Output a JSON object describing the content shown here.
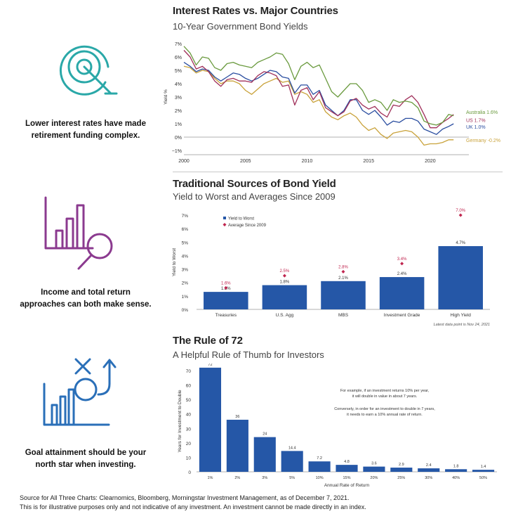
{
  "captions": [
    {
      "line1": "Lower interest rates have made",
      "line2": "retirement funding complex."
    },
    {
      "line1": "Income and total return",
      "line2": "approaches can both make sense."
    },
    {
      "line1": "Goal attainment should be your",
      "line2": "north star when investing."
    }
  ],
  "icon_color": "#2aa8a8",
  "icon_color_2": "#8b3a8f",
  "icon_color_3": "#2a6fb8",
  "icons": [
    "target-icon",
    "bar-chart-magnifier-icon",
    "strategy-chart-icon"
  ],
  "chart_data": [
    {
      "type": "line",
      "title": "Interest Rates vs. Major Countries",
      "subtitle": "10-Year Government Bond Yields",
      "ylabel": "Yield %",
      "xlim": [
        2000,
        2022
      ],
      "ylim": [
        -1,
        7
      ],
      "x_ticks": [
        "2000",
        "2005",
        "2010",
        "2015",
        "2020"
      ],
      "y_ticks": [
        "7%",
        "6%",
        "5%",
        "4%",
        "3%",
        "2%",
        "1%",
        "0%",
        "−1%"
      ],
      "series": [
        {
          "name": "Australia 1.6%",
          "color": "#6a9a3e",
          "x": [
            2000,
            2000.5,
            2001,
            2001.5,
            2002,
            2002.5,
            2003,
            2003.5,
            2004,
            2004.5,
            2005,
            2005.5,
            2006,
            2006.5,
            2007,
            2007.5,
            2008,
            2008.5,
            2009,
            2009.5,
            2010,
            2010.5,
            2011,
            2011.5,
            2012,
            2012.5,
            2013,
            2013.5,
            2014,
            2014.5,
            2015,
            2015.5,
            2016,
            2016.5,
            2017,
            2017.5,
            2018,
            2018.5,
            2019,
            2019.5,
            2020,
            2020.5,
            2021,
            2021.5,
            2021.9
          ],
          "values": [
            6.8,
            6.3,
            5.4,
            6.0,
            5.9,
            5.2,
            5.0,
            5.5,
            5.6,
            5.4,
            5.3,
            5.2,
            5.6,
            5.8,
            6.0,
            6.3,
            6.2,
            5.5,
            4.3,
            5.3,
            5.6,
            5.2,
            5.4,
            4.4,
            3.4,
            3.0,
            3.5,
            4.0,
            4.0,
            3.5,
            2.6,
            2.8,
            2.6,
            2.0,
            2.8,
            2.6,
            2.7,
            2.6,
            2.2,
            1.2,
            1.0,
            0.9,
            1.1,
            1.7,
            1.6
          ]
        },
        {
          "name": "US 1.7%",
          "color": "#a0305a",
          "x": [
            2000,
            2000.5,
            2001,
            2001.5,
            2002,
            2002.5,
            2003,
            2003.5,
            2004,
            2004.5,
            2005,
            2005.5,
            2006,
            2006.5,
            2007,
            2007.5,
            2008,
            2008.5,
            2009,
            2009.5,
            2010,
            2010.5,
            2011,
            2011.5,
            2012,
            2012.5,
            2013,
            2013.5,
            2014,
            2014.5,
            2015,
            2015.5,
            2016,
            2016.5,
            2017,
            2017.5,
            2018,
            2018.5,
            2019,
            2019.5,
            2020,
            2020.5,
            2021,
            2021.5,
            2021.9
          ],
          "values": [
            6.5,
            6.0,
            5.1,
            5.3,
            4.9,
            4.2,
            3.8,
            4.3,
            4.4,
            4.2,
            4.2,
            4.1,
            4.6,
            4.9,
            4.8,
            4.6,
            3.8,
            3.9,
            2.4,
            3.5,
            3.7,
            2.8,
            3.4,
            2.2,
            1.9,
            1.6,
            1.9,
            2.7,
            2.9,
            2.4,
            2.1,
            2.3,
            1.8,
            1.5,
            2.4,
            2.3,
            2.8,
            3.1,
            2.6,
            1.7,
            0.7,
            0.7,
            1.1,
            1.4,
            1.7
          ]
        },
        {
          "name": "UK 1.0%",
          "color": "#2b4ea0",
          "x": [
            2000,
            2000.5,
            2001,
            2001.5,
            2002,
            2002.5,
            2003,
            2003.5,
            2004,
            2004.5,
            2005,
            2005.5,
            2006,
            2006.5,
            2007,
            2007.5,
            2008,
            2008.5,
            2009,
            2009.5,
            2010,
            2010.5,
            2011,
            2011.5,
            2012,
            2012.5,
            2013,
            2013.5,
            2014,
            2014.5,
            2015,
            2015.5,
            2016,
            2016.5,
            2017,
            2017.5,
            2018,
            2018.5,
            2019,
            2019.5,
            2020,
            2020.5,
            2021,
            2021.5,
            2021.9
          ],
          "values": [
            5.6,
            5.3,
            4.9,
            5.1,
            5.0,
            4.5,
            4.2,
            4.5,
            4.8,
            4.7,
            4.4,
            4.2,
            4.4,
            4.7,
            5.0,
            4.9,
            4.5,
            4.4,
            3.3,
            3.9,
            3.9,
            3.2,
            3.5,
            2.4,
            2.0,
            1.6,
            2.0,
            2.8,
            2.8,
            2.0,
            1.7,
            2.0,
            1.5,
            0.9,
            1.2,
            1.1,
            1.4,
            1.4,
            1.2,
            0.6,
            0.4,
            0.2,
            0.6,
            0.8,
            1.0
          ]
        },
        {
          "name": "Germany -0.2%",
          "color": "#c9a23a",
          "x": [
            2000,
            2000.5,
            2001,
            2001.5,
            2002,
            2002.5,
            2003,
            2003.5,
            2004,
            2004.5,
            2005,
            2005.5,
            2006,
            2006.5,
            2007,
            2007.5,
            2008,
            2008.5,
            2009,
            2009.5,
            2010,
            2010.5,
            2011,
            2011.5,
            2012,
            2012.5,
            2013,
            2013.5,
            2014,
            2014.5,
            2015,
            2015.5,
            2016,
            2016.5,
            2017,
            2017.5,
            2018,
            2018.5,
            2019,
            2019.5,
            2020,
            2020.5,
            2021,
            2021.5,
            2021.9
          ],
          "values": [
            5.3,
            5.2,
            4.8,
            5.0,
            4.9,
            4.4,
            4.0,
            4.2,
            4.2,
            4.0,
            3.5,
            3.2,
            3.6,
            4.0,
            4.2,
            4.4,
            4.1,
            4.2,
            3.2,
            3.4,
            3.2,
            2.6,
            2.8,
            1.9,
            1.5,
            1.3,
            1.6,
            1.8,
            1.5,
            0.9,
            0.5,
            0.7,
            0.2,
            -0.1,
            0.3,
            0.4,
            0.5,
            0.4,
            0.0,
            -0.6,
            -0.5,
            -0.5,
            -0.4,
            -0.2,
            -0.2
          ]
        }
      ]
    },
    {
      "type": "bar",
      "title": "Traditional Sources of Bond Yield",
      "subtitle": "Yield to Worst and Averages Since 2009",
      "ylabel": "Yield to Worst",
      "ylim": [
        0,
        7
      ],
      "y_ticks": [
        "7%",
        "6%",
        "5%",
        "4%",
        "3%",
        "2%",
        "1%",
        "0%"
      ],
      "categories": [
        "Treasuries",
        "U.S. Agg",
        "MBS",
        "Investment Grade",
        "High Yield"
      ],
      "series": [
        {
          "name": "Yield to Worst",
          "color": "#2557a7",
          "values": [
            1.3,
            1.8,
            2.1,
            2.4,
            4.7
          ],
          "labels": [
            "1.3%",
            "1.8%",
            "2.1%",
            "2.4%",
            "4.7%"
          ]
        },
        {
          "name": "Average Since 2009",
          "color": "#c0254f",
          "values": [
            1.6,
            2.5,
            2.8,
            3.4,
            7.0
          ],
          "labels": [
            "1.6%",
            "2.5%",
            "2.8%",
            "3.4%",
            "7.0%"
          ]
        }
      ],
      "note": "Latest data point is Nov 24, 2021"
    },
    {
      "type": "bar",
      "title": "The Rule of 72",
      "subtitle": "A Helpful Rule of Thumb for Investors",
      "ylabel": "Years for Investment to Double",
      "xlabel": "Annual Rate of Return",
      "ylim": [
        0,
        70
      ],
      "y_ticks": [
        "70",
        "60",
        "50",
        "40",
        "30",
        "20",
        "10",
        "0"
      ],
      "categories": [
        "1%",
        "2%",
        "3%",
        "5%",
        "10%",
        "15%",
        "20%",
        "25%",
        "30%",
        "40%",
        "50%"
      ],
      "values": [
        72,
        36,
        24,
        14.4,
        7.2,
        4.8,
        3.6,
        2.9,
        2.4,
        1.8,
        1.4
      ],
      "labels": [
        "72",
        "36",
        "24",
        "14.4",
        "7.2",
        "4.8",
        "3.6",
        "2.9",
        "2.4",
        "1.8",
        "1.4"
      ],
      "color": "#2557a7",
      "annotation_1": [
        "For example, if an investment returns 10% per year,",
        "it will double in value in about 7 years."
      ],
      "annotation_2": [
        "Conversely, in order for an investment to double in 7 years,",
        "it needs to earn a 10% annual rate of return."
      ]
    }
  ],
  "footer": {
    "line1": "Source for All Three Charts: Clearnomics, Bloomberg, Morningstar Investment Management, as of December 7, 2021.",
    "line2": "This is for illustrative purposes only and not indicative of any investment. An investment cannot be made directly in an index."
  }
}
